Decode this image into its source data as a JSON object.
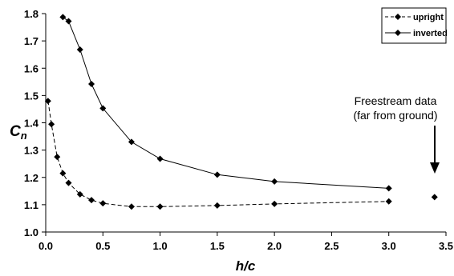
{
  "chart_data": {
    "type": "line",
    "xlabel": "h/c",
    "ylabel_main": "C",
    "ylabel_sub": "n",
    "xlim": [
      0.0,
      3.5
    ],
    "ylim": [
      1.0,
      1.8
    ],
    "x_ticks": [
      "0.0",
      "0.5",
      "1.0",
      "1.5",
      "2.0",
      "2.5",
      "3.0",
      "3.5"
    ],
    "y_ticks": [
      "1.0",
      "1.1",
      "1.2",
      "1.3",
      "1.4",
      "1.5",
      "1.6",
      "1.7",
      "1.8"
    ],
    "grid": false,
    "legend_position": "top-right",
    "series": [
      {
        "name": "upright",
        "line_style": "dashed",
        "color": "#000000",
        "marker": "diamond",
        "x": [
          0.02,
          0.05,
          0.1,
          0.15,
          0.2,
          0.3,
          0.4,
          0.5,
          0.75,
          1.0,
          1.5,
          2.0,
          3.0
        ],
        "y": [
          1.48,
          1.395,
          1.275,
          1.215,
          1.18,
          1.138,
          1.117,
          1.105,
          1.093,
          1.093,
          1.097,
          1.103,
          1.112
        ]
      },
      {
        "name": "inverted",
        "line_style": "solid",
        "color": "#000000",
        "marker": "diamond",
        "x": [
          0.15,
          0.2,
          0.3,
          0.4,
          0.5,
          0.75,
          1.0,
          1.5,
          2.0,
          3.0
        ],
        "y": [
          1.787,
          1.772,
          1.668,
          1.542,
          1.453,
          1.33,
          1.268,
          1.21,
          1.185,
          1.16
        ]
      }
    ],
    "freestream_point": {
      "x": 3.4,
      "y": 1.128
    },
    "annotation": {
      "line1": "Freestream data",
      "line2": "(far from ground)"
    }
  }
}
